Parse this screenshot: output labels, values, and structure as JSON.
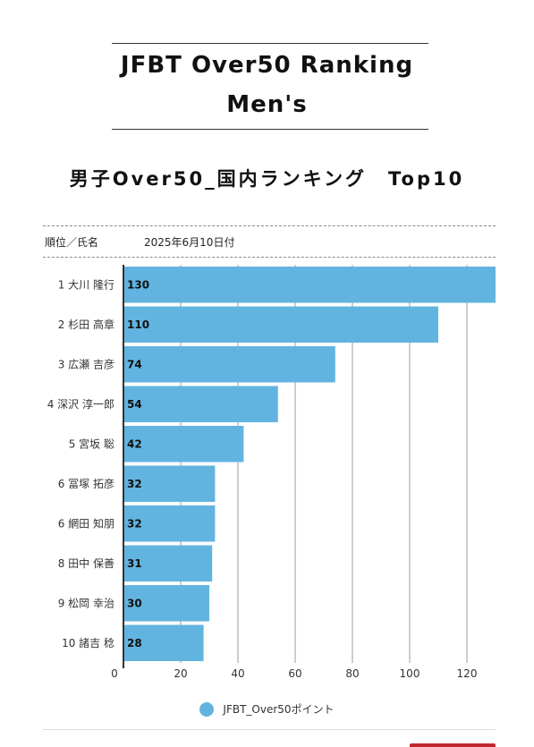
{
  "header": {
    "title_line1": "JFBT Over50 Ranking",
    "title_line2": "Men's",
    "subtitle": "男子Over50_国内ランキング　Top10"
  },
  "table_header": {
    "rank_name_label": "順位／氏名",
    "date_label": "2025年6月10日付"
  },
  "colors": {
    "bar": "#62b4e0",
    "grid": "#9e9e9e",
    "axis": "#333333",
    "accent": "#c0262d"
  },
  "chart_data": {
    "type": "bar",
    "orientation": "horizontal",
    "categories": [
      "1 大川 隆行",
      "2 杉田 高章",
      "3 広瀬 吉彦",
      "4 深沢 淳一郎",
      "5 宮坂 聡",
      "6 冨塚 拓彦",
      "6 網田 知朋",
      "8 田中 保善",
      "9 松岡 幸治",
      "10 諸吉 稔"
    ],
    "series": [
      {
        "name": "JFBT_Over50ポイント",
        "values": [
          130,
          110,
          74,
          54,
          42,
          32,
          32,
          31,
          30,
          28
        ]
      }
    ],
    "xlim": [
      0,
      130
    ],
    "x_ticks": [
      0,
      20,
      40,
      60,
      80,
      100,
      120
    ],
    "grid": true,
    "legend_position": "bottom"
  }
}
